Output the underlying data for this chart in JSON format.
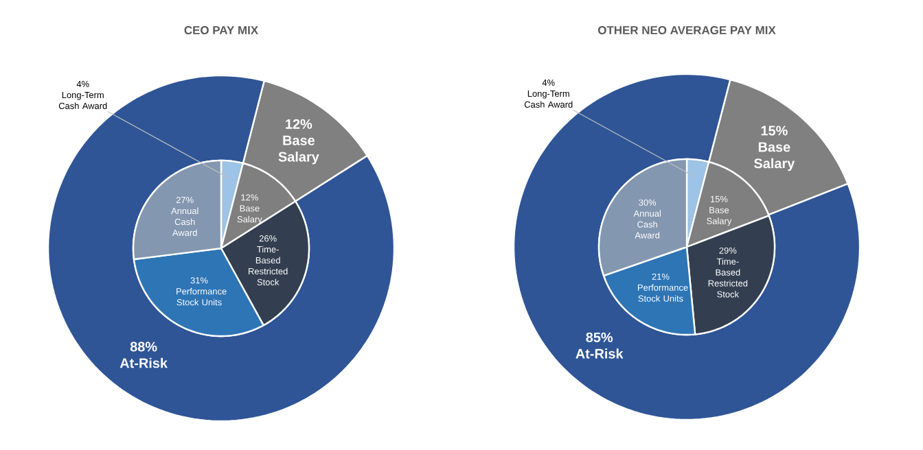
{
  "chart_data": [
    {
      "type": "donut",
      "title": "CEO PAY MIX",
      "categories": [
        "Base Salary",
        "At-Risk"
      ],
      "values": [
        12,
        88
      ],
      "value_labels": [
        "12%",
        "88%"
      ],
      "colors": [
        "#808080",
        "#2f5597"
      ]
    },
    {
      "type": "pie",
      "categories": [
        "Long-Term Cash Award",
        "Base Salary",
        "Time-Based Restricted Stock",
        "Performance Stock Units",
        "Annual Cash Award"
      ],
      "values": [
        4,
        12,
        26,
        31,
        27
      ],
      "value_labels": [
        "4%",
        "12%",
        "26%",
        "31%",
        "27%"
      ],
      "colors": [
        "#9dc3e6",
        "#7f7f7f",
        "#333f50",
        "#2e75b6",
        "#8497b0"
      ]
    },
    {
      "type": "donut",
      "title": "OTHER NEO AVERAGE PAY MIX",
      "categories": [
        "Base Salary",
        "At-Risk"
      ],
      "values": [
        15,
        85
      ],
      "value_labels": [
        "15%",
        "85%"
      ],
      "colors": [
        "#808080",
        "#2f5597"
      ]
    },
    {
      "type": "pie",
      "categories": [
        "Long-Term Cash Award",
        "Base Salary",
        "Time-Based Restricted Stock",
        "Performance Stock Units",
        "Annual Cash Award"
      ],
      "values": [
        4,
        15,
        29,
        21,
        30
      ],
      "value_labels": [
        "4%",
        "15%",
        "29%",
        "21%",
        "30%"
      ],
      "colors": [
        "#9dc3e6",
        "#7f7f7f",
        "#333f50",
        "#2e75b6",
        "#8497b0"
      ]
    }
  ]
}
